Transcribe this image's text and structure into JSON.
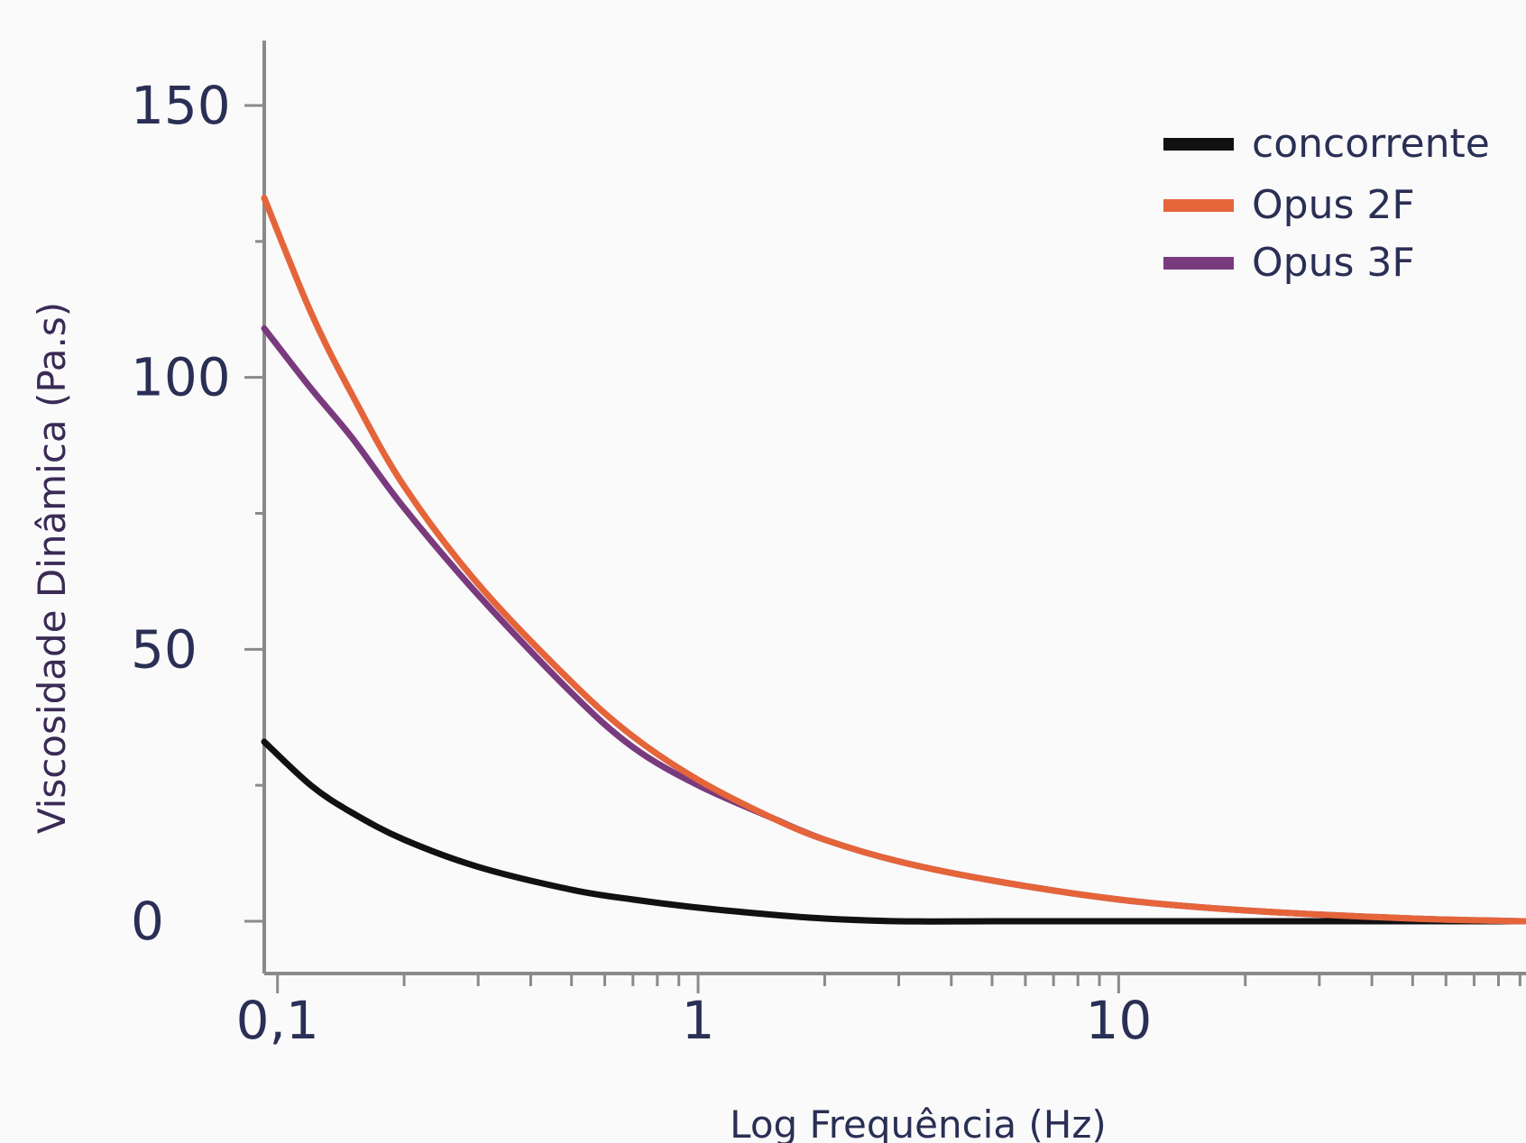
{
  "chart_data": {
    "type": "line",
    "xscale": "log",
    "xlabel": "Log Frequência (Hz)",
    "ylabel": "Viscosidade Dinâmica (Pa.s)",
    "xlim": [
      0.093,
      93
    ],
    "ylim": [
      -10,
      150
    ],
    "x_ticks": [
      {
        "value": 0.1,
        "label": "0,1"
      },
      {
        "value": 1,
        "label": "1"
      },
      {
        "value": 10,
        "label": "10"
      }
    ],
    "y_ticks": [
      {
        "value": 150,
        "label": "150"
      },
      {
        "value": 100,
        "label": "100"
      },
      {
        "value": 50,
        "label": "50"
      },
      {
        "value": 0,
        "label": "0"
      }
    ],
    "legend_position": "top-right",
    "grid": false,
    "series": [
      {
        "name": "concorrente",
        "color": "#111111",
        "x": [
          0.093,
          0.12,
          0.15,
          0.2,
          0.3,
          0.5,
          0.7,
          1,
          1.5,
          2,
          3,
          5,
          10,
          20,
          50,
          93
        ],
        "y": [
          33,
          25,
          20,
          15,
          10,
          5.8,
          4,
          2.5,
          1.2,
          0.5,
          0,
          0,
          0,
          0,
          0,
          0
        ]
      },
      {
        "name": "Opus 2F",
        "color": "#e5643a",
        "x": [
          0.093,
          0.12,
          0.15,
          0.2,
          0.3,
          0.5,
          0.7,
          1,
          1.5,
          2,
          3,
          5,
          10,
          20,
          50,
          93
        ],
        "y": [
          133,
          112,
          97,
          80,
          62,
          44,
          34,
          26,
          19,
          15,
          11,
          7.5,
          4,
          2,
          0.5,
          0
        ]
      },
      {
        "name": "Opus 3F",
        "color": "#7a3a7e",
        "x": [
          0.093,
          0.12,
          0.15,
          0.2,
          0.3,
          0.5,
          0.7,
          1,
          1.5,
          2,
          3,
          5,
          10,
          20,
          50,
          93
        ],
        "y": [
          109,
          98,
          89,
          76,
          60,
          42,
          32,
          25,
          19,
          15,
          11,
          7.5,
          4,
          2,
          0.5,
          0
        ]
      }
    ]
  }
}
